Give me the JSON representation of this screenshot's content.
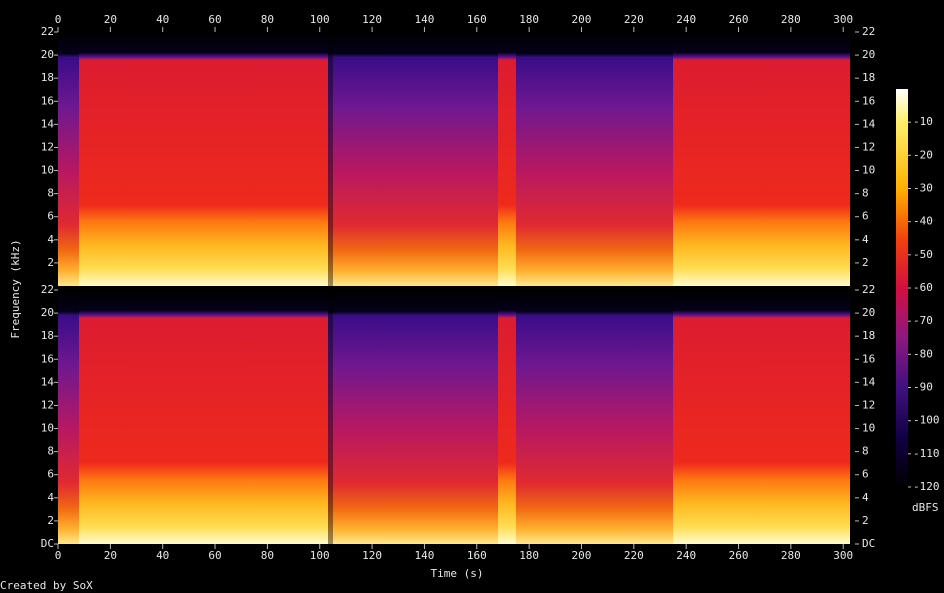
{
  "chart_data": {
    "type": "spectrogram",
    "x_label": "Time (s)",
    "y_label": "Frequency (kHz)",
    "xlim": [
      0,
      304.5
    ],
    "xticks": [
      0,
      20,
      40,
      60,
      80,
      100,
      120,
      140,
      160,
      180,
      200,
      220,
      240,
      260,
      280,
      300
    ],
    "channels": [
      {
        "ylim": [
          0,
          22
        ],
        "yticks": [
          2,
          4,
          6,
          8,
          10,
          12,
          14,
          16,
          18,
          20,
          22
        ]
      },
      {
        "ylim": [
          0,
          22
        ],
        "yticks": [
          {
            "value": 0,
            "label": "DC"
          },
          2,
          4,
          6,
          8,
          10,
          12,
          14,
          16,
          18,
          20,
          22
        ]
      }
    ],
    "colorbar": {
      "label": "dBFS",
      "lim": [
        -120,
        0
      ],
      "ticks": [
        -120,
        -110,
        -100,
        -90,
        -80,
        -70,
        -60,
        -50,
        -40,
        -30,
        -20,
        -10
      ]
    },
    "footer": "Created by SoX"
  }
}
